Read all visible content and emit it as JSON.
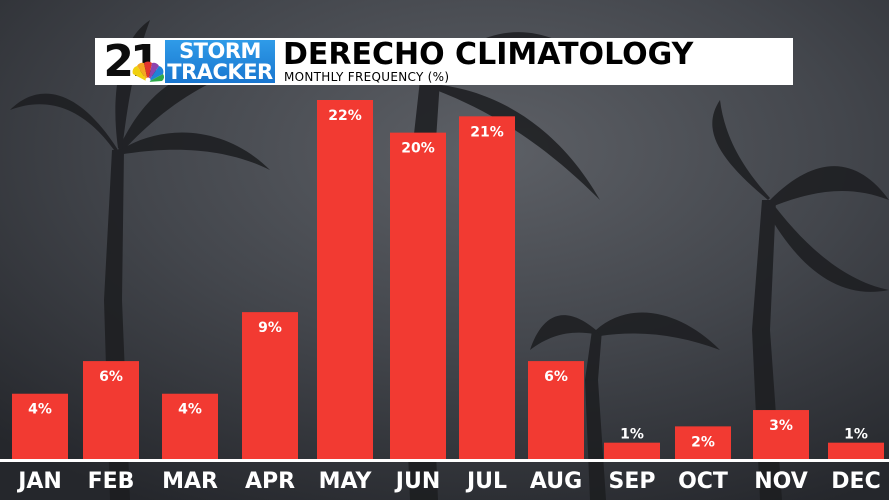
{
  "logo": {
    "number": "21",
    "line1": "STORM",
    "line2": "TRACKER",
    "icon": "nbc-peacock-icon"
  },
  "colors": {
    "bar": "#f23a32",
    "bar_dark": "#d83028",
    "header_bg": "#ffffff",
    "logo_blue": "#1f82d8",
    "axis_label": "#ffffff"
  },
  "chart_data": {
    "type": "bar",
    "title": "DERECHO CLIMATOLOGY",
    "subtitle": "MONTHLY FREQUENCY (%)",
    "categories": [
      "JAN",
      "FEB",
      "MAR",
      "APR",
      "MAY",
      "JUN",
      "JUL",
      "AUG",
      "SEP",
      "OCT",
      "NOV",
      "DEC"
    ],
    "values": [
      4,
      6,
      4,
      9,
      22,
      20,
      21,
      6,
      1,
      2,
      3,
      1
    ],
    "data_labels": [
      "4%",
      "6%",
      "4%",
      "9%",
      "22%",
      "20%",
      "21%",
      "6%",
      "1%",
      "2%",
      "3%",
      "1%"
    ],
    "ylim": [
      0,
      22
    ],
    "grid": false,
    "xlabel": "",
    "ylabel": ""
  }
}
